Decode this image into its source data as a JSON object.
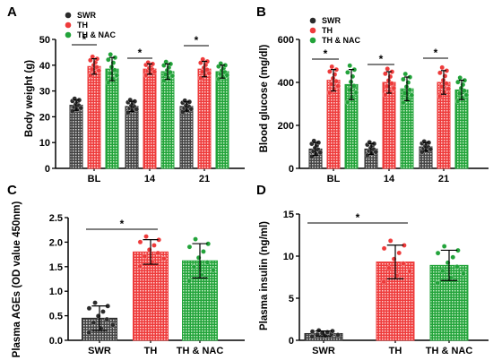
{
  "colors": {
    "SWR": "#2b2b2b",
    "TH": "#ee3b3b",
    "TH & NAC": "#22a33a"
  },
  "legend": [
    "SWR",
    "TH",
    "TH & NAC"
  ],
  "panel_labels": [
    "A",
    "B",
    "C",
    "D"
  ],
  "chart_data": [
    {
      "panel": "A",
      "type": "bar",
      "ylabel": "Body weight (g)",
      "categories": [
        "BL",
        "14",
        "21"
      ],
      "ylim": [
        0,
        50
      ],
      "yticks": [
        0,
        10,
        20,
        30,
        40,
        50
      ],
      "series": [
        {
          "name": "SWR",
          "values": [
            24.5,
            24,
            24
          ],
          "errors": [
            2,
            2,
            1.8
          ]
        },
        {
          "name": "TH",
          "values": [
            39.5,
            38.5,
            38.5
          ],
          "errors": [
            3,
            2,
            3
          ]
        },
        {
          "name": "TH & NAC",
          "values": [
            38.5,
            37.5,
            37.5
          ],
          "errors": [
            4.5,
            3,
            2.5
          ]
        }
      ],
      "annotations": [
        "*",
        "*",
        "*"
      ]
    },
    {
      "panel": "B",
      "type": "bar",
      "ylabel": "Blood glucose (mg/dl)",
      "categories": [
        "BL",
        "14",
        "21"
      ],
      "ylim": [
        0,
        600
      ],
      "yticks": [
        0,
        200,
        400,
        600
      ],
      "series": [
        {
          "name": "SWR",
          "values": [
            90,
            90,
            100
          ],
          "errors": [
            30,
            25,
            20
          ]
        },
        {
          "name": "TH",
          "values": [
            410,
            400,
            400
          ],
          "errors": [
            50,
            50,
            55
          ]
        },
        {
          "name": "TH & NAC",
          "values": [
            390,
            370,
            365
          ],
          "errors": [
            70,
            55,
            45
          ]
        }
      ],
      "annotations": [
        "*",
        "*",
        "*"
      ]
    },
    {
      "panel": "C",
      "type": "bar",
      "ylabel": "Plasma AGEs (OD value 450nm)",
      "categories": [
        "SWR",
        "TH",
        "TH & NAC"
      ],
      "ylim": [
        0,
        2.5
      ],
      "yticks": [
        0.0,
        0.5,
        1.0,
        1.5,
        2.0,
        2.5
      ],
      "values": [
        0.45,
        1.8,
        1.62
      ],
      "errors": [
        0.25,
        0.25,
        0.35
      ],
      "annotations": [
        "*"
      ]
    },
    {
      "panel": "D",
      "type": "bar",
      "ylabel": "Plasma insulin (ng/ml)",
      "categories": [
        "SWR",
        "TH",
        "TH & NAC"
      ],
      "ylim": [
        0,
        15
      ],
      "yticks": [
        0,
        5,
        10,
        15
      ],
      "values": [
        0.8,
        9.3,
        8.9
      ],
      "errors": [
        0.3,
        2,
        1.8
      ],
      "annotations": [
        "*"
      ]
    }
  ]
}
